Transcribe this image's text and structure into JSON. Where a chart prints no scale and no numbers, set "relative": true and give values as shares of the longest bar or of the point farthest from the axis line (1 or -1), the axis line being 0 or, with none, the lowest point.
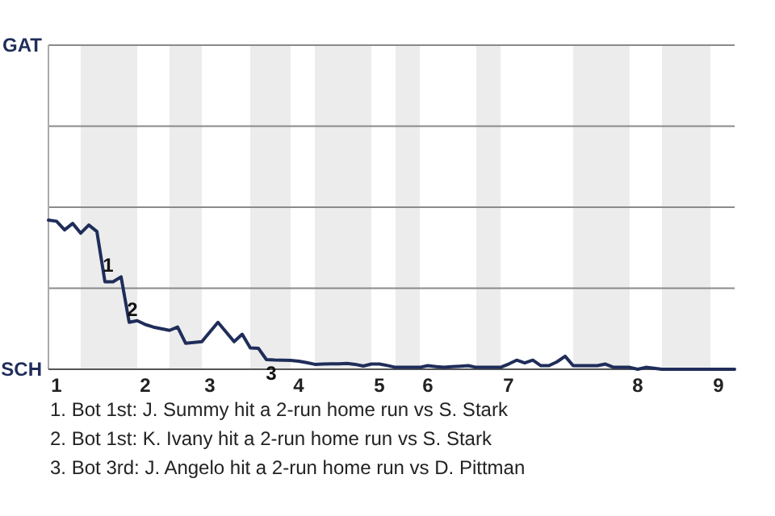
{
  "chart_data": {
    "type": "line",
    "relative": true,
    "categories": [
      null,
      "1",
      null,
      null,
      null,
      null,
      null,
      null,
      null,
      null,
      null,
      null,
      "2",
      null,
      null,
      null,
      null,
      null,
      null,
      null,
      "3",
      null,
      null,
      null,
      null,
      null,
      null,
      null,
      null,
      null,
      null,
      "4",
      null,
      null,
      null,
      null,
      null,
      null,
      null,
      null,
      null,
      "5",
      null,
      null,
      null,
      null,
      null,
      "6",
      null,
      null,
      null,
      null,
      null,
      null,
      null,
      null,
      null,
      "7",
      null,
      null,
      null,
      null,
      null,
      null,
      null,
      null,
      null,
      null,
      null,
      null,
      null,
      null,
      null,
      "8",
      null,
      null,
      null,
      null,
      null,
      null,
      null,
      null,
      null,
      "9",
      null,
      null
    ],
    "series": [
      {
        "color": "#1f2d5a",
        "values": [
          1,
          0.993,
          0.935,
          0.978,
          0.913,
          0.967,
          0.924,
          0.587,
          0.587,
          0.62,
          0.315,
          0.326,
          0.3,
          0.283,
          0.272,
          0.261,
          0.283,
          0.174,
          0.18,
          0.185,
          0.25,
          0.315,
          0.25,
          0.185,
          0.235,
          0.143,
          0.141,
          0.065,
          0.062,
          0.061,
          0.059,
          0.054,
          0.045,
          0.033,
          0.035,
          0.036,
          0.037,
          0.039,
          0.033,
          0.022,
          0.035,
          0.035,
          0.025,
          0.013,
          0.013,
          0.013,
          0.013,
          0.024,
          0.018,
          0.013,
          0.017,
          0.02,
          0.024,
          0.013,
          0.013,
          0.013,
          0.013,
          0.035,
          0.061,
          0.043,
          0.061,
          0.024,
          0.024,
          0.05,
          0.087,
          0.024,
          0.024,
          0.024,
          0.024,
          0.035,
          0.013,
          0.013,
          0.013,
          0,
          0.013,
          0.007,
          0,
          0,
          0,
          0,
          0,
          0,
          0,
          0,
          0,
          0
        ]
      }
    ],
    "line_style": "solid",
    "ref_lines": [
      {
        "axis": "y",
        "value": 0.543,
        "color": "#8a8a8a"
      }
    ],
    "marker": "none",
    "annotations": [
      "GAT",
      "SCH",
      "1",
      "2",
      "3",
      "1. Bot 1st: J. Summy hit a 2-run home run vs S. Stark",
      "2. Bot 1st: K. Ivany hit a 2-run home run vs S. Stark",
      "3. Bot 3rd: J. Angelo hit a 2-run home run vs D. Pittman"
    ]
  }
}
